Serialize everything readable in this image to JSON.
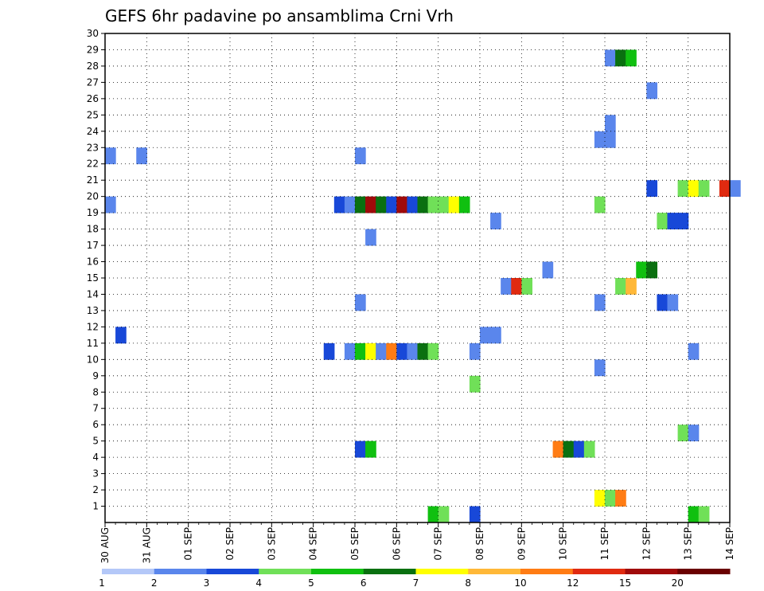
{
  "chart_data": {
    "type": "heatmap",
    "title": "GEFS 6hr padavine po ansamblima Crni Vrh",
    "x_tick_labels": [
      "30 AUG",
      "31 AUG",
      "01 SEP",
      "02 SEP",
      "03 SEP",
      "04 SEP",
      "05 SEP",
      "06 SEP",
      "07 SEP",
      "08 SEP",
      "09 SEP",
      "10 SEP",
      "11 SEP",
      "12 SEP",
      "13 SEP",
      "14 SEP"
    ],
    "x_range_days": [
      0,
      15
    ],
    "y_tick_labels": [
      "1",
      "2",
      "3",
      "4",
      "5",
      "6",
      "7",
      "8",
      "9",
      "10",
      "11",
      "12",
      "13",
      "14",
      "15",
      "16",
      "17",
      "18",
      "19",
      "20",
      "21",
      "22",
      "23",
      "24",
      "25",
      "26",
      "27",
      "28",
      "29",
      "30"
    ],
    "y_range": [
      0,
      30
    ],
    "grid": true,
    "legend_placement": "bottom",
    "legend_bins": [
      {
        "label": "1",
        "color": "#b4c8f8"
      },
      {
        "label": "2",
        "color": "#5a86ec"
      },
      {
        "label": "3",
        "color": "#1848d8"
      },
      {
        "label": "4",
        "color": "#70e058"
      },
      {
        "label": "5",
        "color": "#10c010"
      },
      {
        "label": "6",
        "color": "#0a7010"
      },
      {
        "label": "7",
        "color": "#ffff00"
      },
      {
        "label": "8",
        "color": "#ffb838"
      },
      {
        "label": "10",
        "color": "#ff7c14"
      },
      {
        "label": "12",
        "color": "#e02a10"
      },
      {
        "label": "15",
        "color": "#a00a0a"
      },
      {
        "label": "20",
        "color": "#6a0000"
      }
    ],
    "cells": [
      [
        12,
        29,
        1,
        1
      ],
      [
        12.25,
        29,
        1,
        5
      ],
      [
        12.5,
        29,
        1,
        4
      ],
      [
        13,
        27,
        1,
        1
      ],
      [
        12,
        25,
        1,
        1
      ],
      [
        11.75,
        24,
        1,
        1
      ],
      [
        12,
        24,
        1,
        1
      ],
      [
        0,
        23,
        1,
        1
      ],
      [
        0.75,
        23,
        1,
        1
      ],
      [
        6,
        23,
        1,
        1
      ],
      [
        13,
        21,
        1,
        2
      ],
      [
        13.75,
        21,
        1,
        3
      ],
      [
        14,
        21,
        1,
        6
      ],
      [
        14.25,
        21,
        1,
        3
      ],
      [
        14.75,
        21,
        1,
        9
      ],
      [
        15,
        21,
        1,
        1
      ],
      [
        0,
        20,
        1,
        1
      ],
      [
        5.5,
        20,
        1,
        2
      ],
      [
        5.75,
        20,
        1,
        1
      ],
      [
        6,
        20,
        1,
        5
      ],
      [
        6.25,
        20,
        1,
        10
      ],
      [
        6.5,
        20,
        1,
        5
      ],
      [
        6.75,
        20,
        1,
        2
      ],
      [
        7,
        20,
        1,
        10
      ],
      [
        7.25,
        20,
        1,
        2
      ],
      [
        7.5,
        20,
        1,
        5
      ],
      [
        7.75,
        20,
        1,
        3
      ],
      [
        8,
        20,
        1,
        3
      ],
      [
        8.25,
        20,
        1,
        6
      ],
      [
        8.5,
        20,
        1,
        4
      ],
      [
        11.75,
        20,
        1,
        3
      ],
      [
        13.25,
        19,
        1,
        3
      ],
      [
        13.5,
        19,
        1,
        2
      ],
      [
        13.75,
        19,
        1,
        2
      ],
      [
        9.25,
        19,
        1,
        1
      ],
      [
        6.25,
        18,
        1,
        1
      ],
      [
        10.5,
        16,
        1,
        1
      ],
      [
        12.75,
        16,
        1,
        4
      ],
      [
        13,
        16,
        1,
        5
      ],
      [
        9.5,
        15,
        1,
        1
      ],
      [
        9.75,
        15,
        1,
        9
      ],
      [
        10,
        15,
        1,
        3
      ],
      [
        12.25,
        15,
        1,
        3
      ],
      [
        12.5,
        15,
        1,
        7
      ],
      [
        6,
        14,
        1,
        1
      ],
      [
        11.75,
        14,
        1,
        1
      ],
      [
        13.25,
        14,
        1,
        2
      ],
      [
        13.5,
        14,
        1,
        1
      ],
      [
        0.25,
        12,
        1,
        2
      ],
      [
        9,
        12,
        1,
        1
      ],
      [
        9.25,
        12,
        1,
        1
      ],
      [
        5.25,
        11,
        1,
        2
      ],
      [
        5.75,
        11,
        1,
        1
      ],
      [
        6,
        11,
        1,
        4
      ],
      [
        6.25,
        11,
        1,
        6
      ],
      [
        6.5,
        11,
        1,
        1
      ],
      [
        6.75,
        11,
        1,
        8
      ],
      [
        7,
        11,
        1,
        2
      ],
      [
        7.25,
        11,
        1,
        1
      ],
      [
        7.5,
        11,
        1,
        5
      ],
      [
        7.75,
        11,
        1,
        3
      ],
      [
        8.75,
        11,
        1,
        1
      ],
      [
        14,
        11,
        1,
        1
      ],
      [
        11.75,
        10,
        1,
        1
      ],
      [
        8.75,
        9,
        1,
        3
      ],
      [
        13.75,
        6,
        1,
        3
      ],
      [
        14,
        6,
        1,
        1
      ],
      [
        6,
        5,
        1,
        2
      ],
      [
        6.25,
        5,
        1,
        4
      ],
      [
        10.75,
        5,
        1,
        8
      ],
      [
        11,
        5,
        1,
        5
      ],
      [
        11.25,
        5,
        1,
        2
      ],
      [
        11.5,
        5,
        1,
        3
      ],
      [
        11.75,
        2,
        1,
        6
      ],
      [
        12,
        2,
        1,
        3
      ],
      [
        12.25,
        2,
        1,
        8
      ],
      [
        7.75,
        1,
        1,
        4
      ],
      [
        8,
        1,
        1,
        3
      ],
      [
        8.75,
        1,
        1,
        2
      ],
      [
        14,
        1,
        1,
        4
      ],
      [
        14.25,
        1,
        1,
        3
      ]
    ]
  }
}
